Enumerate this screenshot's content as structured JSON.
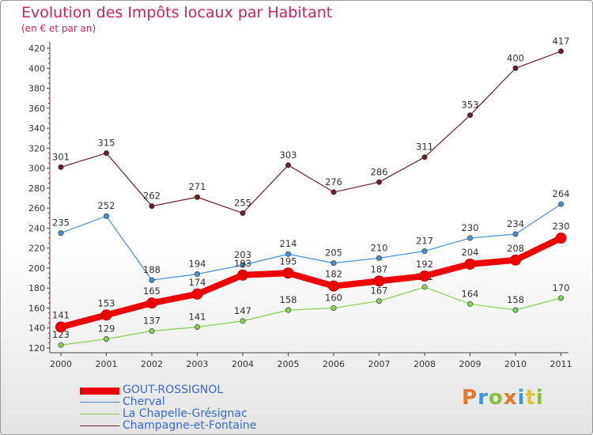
{
  "header": {
    "title": "Evolution des Impôts locaux par Habitant",
    "subtitle": "(en € et par an)"
  },
  "logo": {
    "text": "Proxiti",
    "colors": [
      "#e8762a",
      "#3a9ad9",
      "#86c23a",
      "#e8762a",
      "#3a9ad9",
      "#e8c22a",
      "#86c23a"
    ]
  },
  "chart_data": {
    "type": "line",
    "x": [
      "2000",
      "2001",
      "2002",
      "2003",
      "2004",
      "2005",
      "2006",
      "2007",
      "2008",
      "2009",
      "2010",
      "2011"
    ],
    "ylim": [
      120,
      420
    ],
    "yticks": [
      120,
      140,
      160,
      180,
      200,
      220,
      240,
      260,
      280,
      300,
      320,
      340,
      360,
      380,
      400,
      420
    ],
    "grid": false,
    "legend_position": "bottom-left",
    "series": [
      {
        "name": "Champagne-et-Fontaine",
        "color": "#6b1e26",
        "values": [
          301,
          315,
          262,
          271,
          255,
          303,
          276,
          286,
          311,
          353,
          400,
          417
        ]
      },
      {
        "name": "Cherval",
        "color": "#4a8fd0",
        "values": [
          235,
          252,
          188,
          194,
          203,
          214,
          205,
          210,
          217,
          230,
          234,
          264
        ]
      },
      {
        "name": "La Chapelle-Grésignac",
        "color": "#86d05a",
        "values": [
          123,
          129,
          137,
          141,
          147,
          158,
          160,
          167,
          181,
          164,
          158,
          170
        ]
      },
      {
        "name": "GOUT-ROSSIGNOL",
        "color": "#ee0000",
        "values": [
          141,
          153,
          165,
          174,
          193,
          195,
          182,
          187,
          192,
          204,
          208,
          230
        ]
      }
    ],
    "legend_order": [
      3,
      1,
      2,
      0
    ]
  }
}
